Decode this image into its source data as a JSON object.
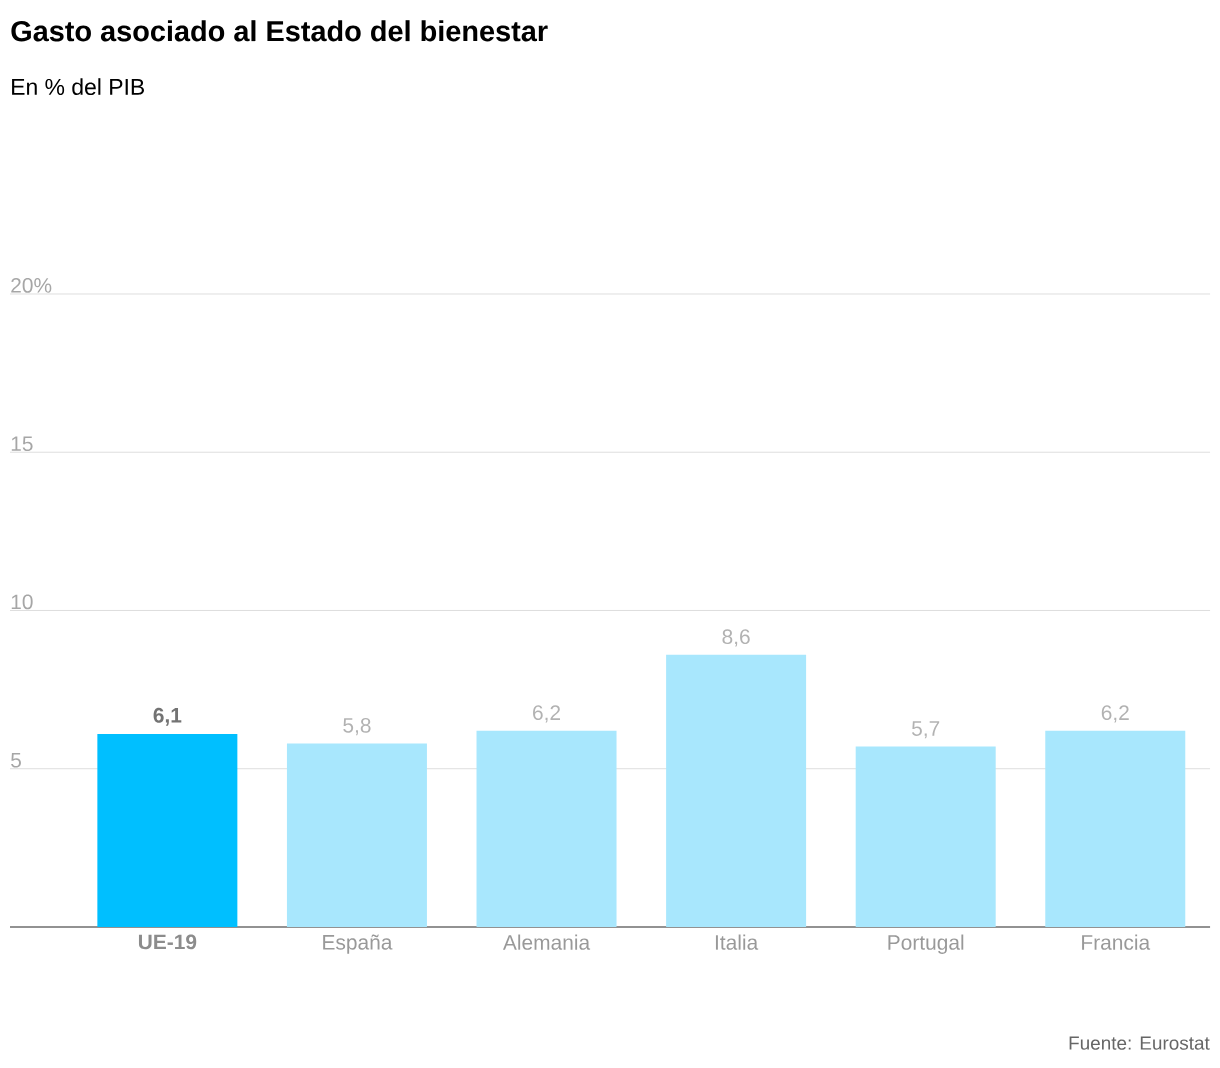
{
  "chart_data": {
    "type": "bar",
    "title": "Gasto asociado al Estado del bienestar",
    "subtitle": "En % del PIB",
    "categories": [
      "UE-19",
      "España",
      "Alemania",
      "Italia",
      "Portugal",
      "Francia"
    ],
    "values": [
      6.1,
      5.8,
      6.2,
      8.6,
      5.7,
      6.2
    ],
    "value_labels": [
      "6,1",
      "5,8",
      "6,2",
      "8,6",
      "5,7",
      "6,2"
    ],
    "colors": [
      "#00bfff",
      "#a8e7fd",
      "#a8e7fd",
      "#a8e7fd",
      "#a8e7fd",
      "#a8e7fd"
    ],
    "ylim": [
      0,
      20
    ],
    "yticks": [
      {
        "value": 5,
        "label": "5"
      },
      {
        "value": 10,
        "label": "10"
      },
      {
        "value": 15,
        "label": "15"
      },
      {
        "value": 20,
        "label": "20%"
      }
    ],
    "grid": "y",
    "annotations": [
      "Fuente: Eurostat"
    ]
  }
}
